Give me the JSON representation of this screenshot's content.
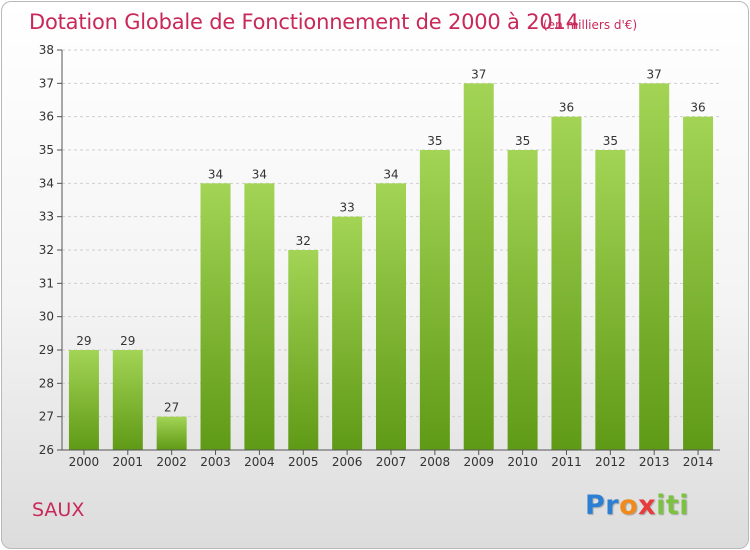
{
  "header": {
    "title": "Dotation Globale de Fonctionnement de 2000 à 2014",
    "subtitle": "(en milliers d'€)"
  },
  "footer": {
    "commune": "SAUX",
    "logo_text": "Proxiti"
  },
  "colors": {
    "title": "#c8285a",
    "bar_light": "#a3d455",
    "bar_dark": "#5f9a16",
    "grid": "#cfcfcf",
    "axis_text": "#333333"
  },
  "chart_data": {
    "type": "bar",
    "title": "Dotation Globale de Fonctionnement de 2000 à 2014",
    "subtitle": "(en milliers d'€)",
    "categories": [
      "2000",
      "2001",
      "2002",
      "2003",
      "2004",
      "2005",
      "2006",
      "2007",
      "2008",
      "2009",
      "2010",
      "2011",
      "2012",
      "2013",
      "2014"
    ],
    "values": [
      29,
      29,
      27,
      34,
      34,
      32,
      33,
      34,
      35,
      37,
      35,
      36,
      35,
      37,
      36
    ],
    "ylim": [
      26,
      38
    ],
    "yticks": [
      26,
      27,
      28,
      29,
      30,
      31,
      32,
      33,
      34,
      35,
      36,
      37,
      38
    ],
    "grid": true,
    "data_labels": true,
    "legend": "none"
  }
}
